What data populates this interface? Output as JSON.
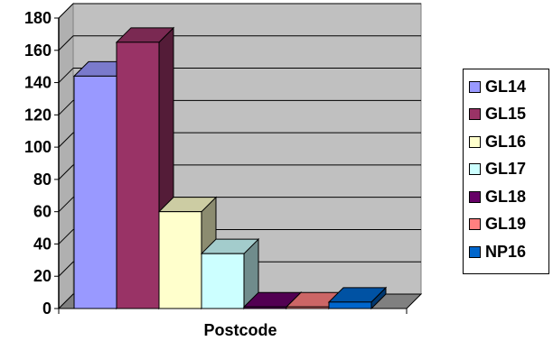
{
  "chart_data": {
    "type": "bar",
    "style": "3d-clustered-column",
    "xlabel": "Postcode",
    "ylabel": "",
    "ylim": [
      0,
      180
    ],
    "ytick_step": 20,
    "grid": true,
    "legend_position": "right",
    "categories": [
      "Postcode"
    ],
    "series": [
      {
        "name": "GL14",
        "values": [
          144
        ],
        "color": "#9999ff"
      },
      {
        "name": "GL15",
        "values": [
          165
        ],
        "color": "#993366"
      },
      {
        "name": "GL16",
        "values": [
          60
        ],
        "color": "#ffffcc"
      },
      {
        "name": "GL17",
        "values": [
          34
        ],
        "color": "#ccffff"
      },
      {
        "name": "GL18",
        "values": [
          1
        ],
        "color": "#660066"
      },
      {
        "name": "GL19",
        "values": [
          1
        ],
        "color": "#ff8080"
      },
      {
        "name": "NP16",
        "values": [
          4
        ],
        "color": "#0066cc"
      }
    ]
  }
}
